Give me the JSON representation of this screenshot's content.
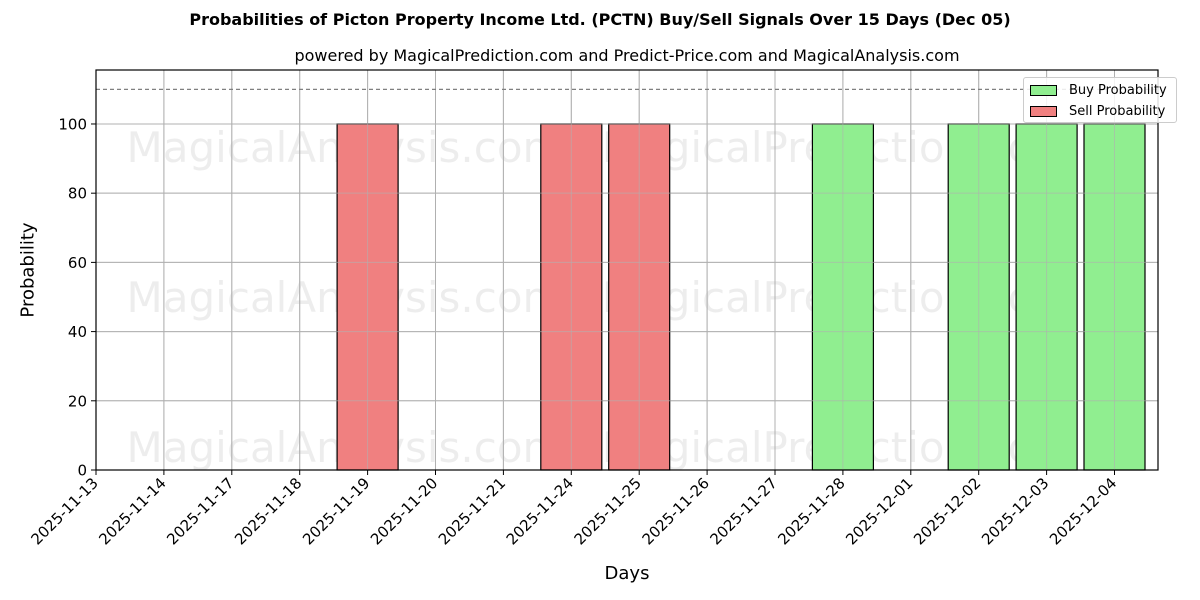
{
  "chart_data": {
    "type": "bar",
    "title": "Probabilities of Picton Property Income Ltd. (PCTN) Buy/Sell Signals Over 15 Days (Dec 05)",
    "subtitle": "powered by MagicalPrediction.com and Predict-Price.com and MagicalAnalysis.com",
    "xlabel": "Days",
    "ylabel": "Probability",
    "ylim": [
      0,
      115.6
    ],
    "yticks": [
      0,
      20,
      40,
      60,
      80,
      100
    ],
    "threshold_line": 110,
    "grid": true,
    "legend_position": "upper right",
    "categories": [
      "2025-11-13",
      "2025-11-14",
      "2025-11-17",
      "2025-11-18",
      "2025-11-19",
      "2025-11-20",
      "2025-11-21",
      "2025-11-24",
      "2025-11-25",
      "2025-11-26",
      "2025-11-27",
      "2025-11-28",
      "2025-12-01",
      "2025-12-02",
      "2025-12-03",
      "2025-12-04"
    ],
    "series": [
      {
        "name": "Buy Probability",
        "color": "#90ee90",
        "values": [
          0,
          0,
          0,
          0,
          0,
          0,
          0,
          0,
          0,
          0,
          0,
          100,
          0,
          100,
          100,
          100
        ]
      },
      {
        "name": "Sell Probability",
        "color": "#f08080",
        "values": [
          0,
          0,
          0,
          0,
          100,
          0,
          0,
          100,
          100,
          0,
          0,
          0,
          0,
          0,
          0,
          0
        ]
      }
    ],
    "watermarks": [
      "MagicalAnalysis.com",
      "MagicalPrediction.com"
    ]
  }
}
